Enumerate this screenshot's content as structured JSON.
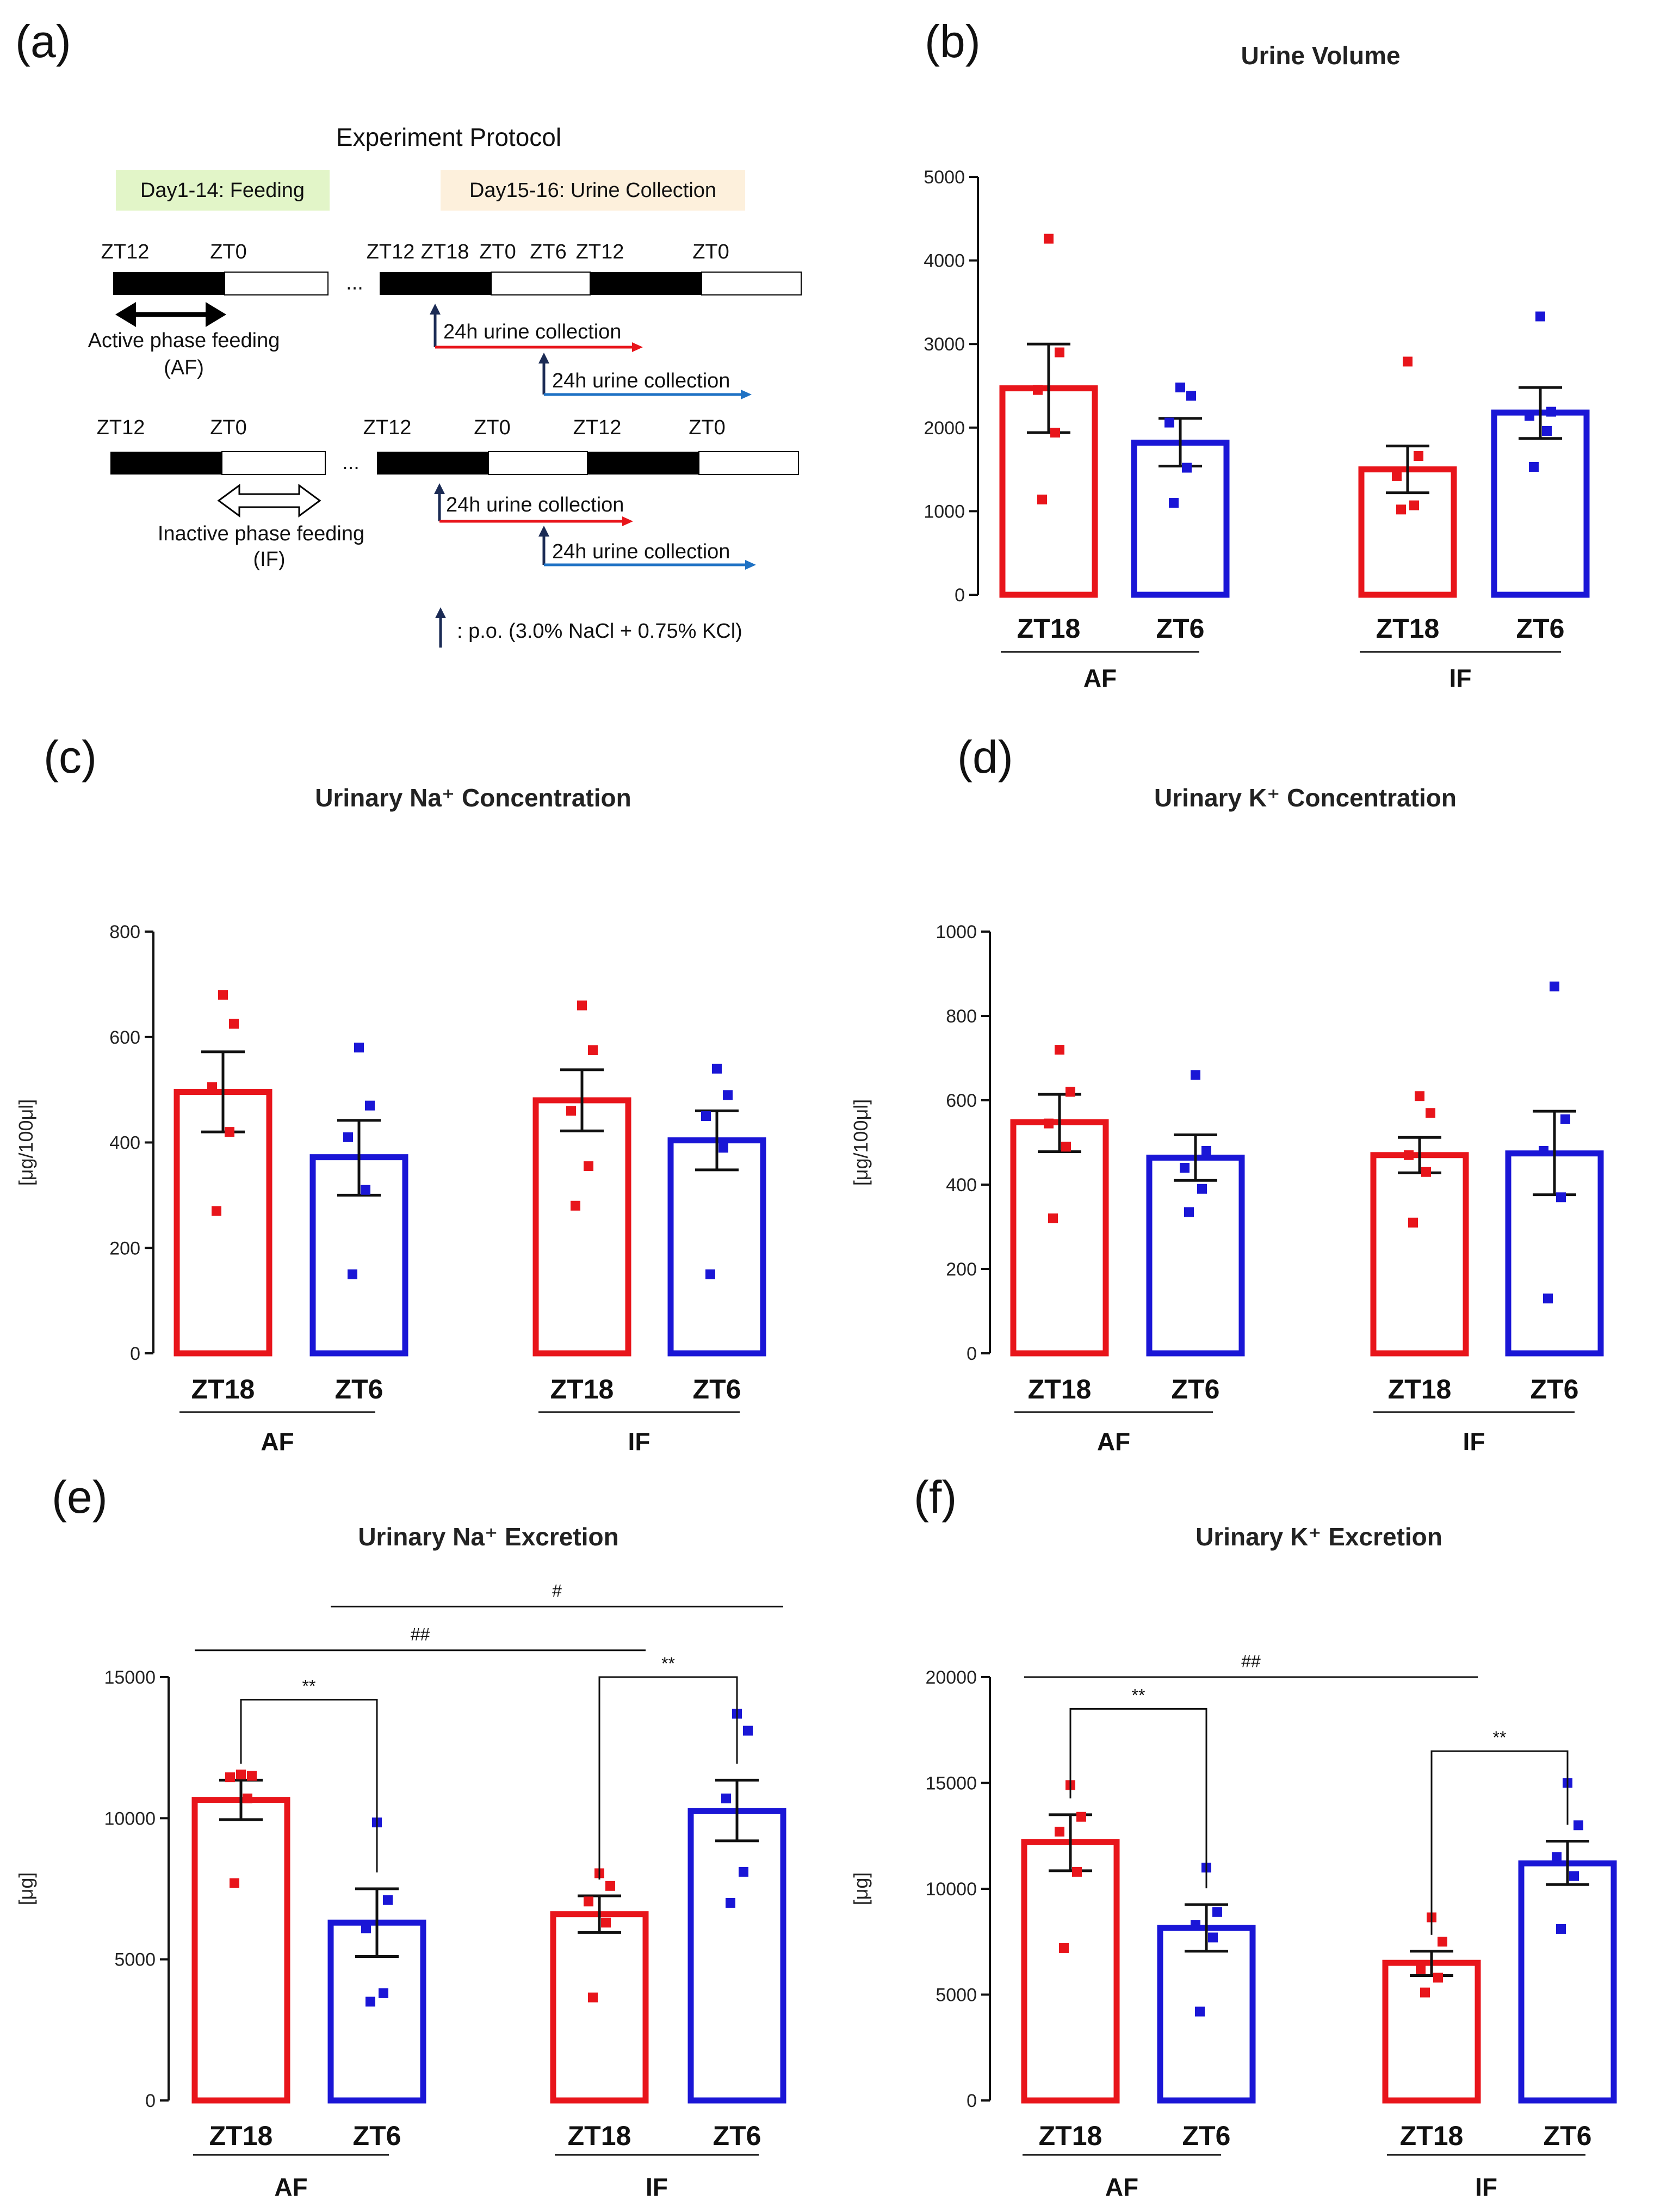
{
  "panel_labels": [
    "(a)",
    "(b)",
    "(c)",
    "(d)",
    "(e)",
    "(f)"
  ],
  "colors": {
    "red": "#e8151b",
    "blue": "#1a16d6",
    "black": "#111111",
    "arrow_red": "#e8151b",
    "arrow_blue": "#1f72c4",
    "arrow_navy": "#1b2b55",
    "feeding_box": "#e2f5c8",
    "collection_box": "#fdf0dc"
  },
  "protocol": {
    "title": "Experiment Protocol",
    "feeding_label": "Day1-14: Feeding",
    "collection_label": "Day15-16: Urine Collection",
    "af": {
      "feed_ticks": [
        "ZT12",
        "ZT0"
      ],
      "collect_ticks": [
        "ZT12",
        "ZT18",
        "ZT0",
        "ZT6",
        "ZT12",
        "ZT0"
      ],
      "label_line1": "Active phase feeding",
      "label_line2": "(AF)"
    },
    "if": {
      "feed_ticks": [
        "ZT12",
        "ZT0"
      ],
      "collect_ticks": [
        "ZT12",
        "ZT0",
        "ZT12",
        "ZT0"
      ],
      "label_line1": "Inactive phase feeding",
      "label_line2": "(IF)"
    },
    "ellipsis": "...",
    "collection_text": "24h  urine collection",
    "legend_text": ": p.o. (3.0% NaCl + 0.75% KCl)"
  },
  "chart_data": [
    {
      "id": "b",
      "type": "bar",
      "title": "Urine Volume",
      "ylabel": "",
      "categories": [
        "ZT18",
        "ZT6",
        "ZT18",
        "ZT6"
      ],
      "groups": [
        "AF",
        "IF"
      ],
      "ylim": [
        0,
        5000
      ],
      "yticks": [
        "0",
        "1000",
        "2000",
        "3000",
        "4000",
        "5000"
      ],
      "ytick_values": [
        0,
        1000,
        2000,
        3000,
        4000,
        5000
      ],
      "series": [
        {
          "name": "AF ZT18",
          "color": "red",
          "mean": 2470,
          "sem": [
            1940,
            3000
          ],
          "points": [
            4260,
            2900,
            2450,
            1940,
            1140
          ]
        },
        {
          "name": "AF ZT6",
          "color": "blue",
          "mean": 1820,
          "sem": [
            1540,
            2110
          ],
          "points": [
            2480,
            2380,
            2060,
            1520,
            1100
          ]
        },
        {
          "name": "IF ZT18",
          "color": "red",
          "mean": 1500,
          "sem": [
            1220,
            1780
          ],
          "points": [
            2790,
            1660,
            1420,
            1070,
            1020
          ]
        },
        {
          "name": "IF ZT6",
          "color": "blue",
          "mean": 2180,
          "sem": [
            1870,
            2480
          ],
          "points": [
            3330,
            2190,
            2140,
            1960,
            1530
          ]
        }
      ],
      "significance": []
    },
    {
      "id": "c",
      "type": "bar",
      "title": "Urinary Na⁺ Concentration",
      "ylabel": "[μg/100μl]",
      "categories": [
        "ZT18",
        "ZT6",
        "ZT18",
        "ZT6"
      ],
      "groups": [
        "AF",
        "IF"
      ],
      "ylim": [
        0,
        800
      ],
      "yticks": [
        "0",
        "200",
        "400",
        "600",
        "800"
      ],
      "ytick_values": [
        0,
        200,
        400,
        600,
        800
      ],
      "series": [
        {
          "name": "AF ZT18",
          "color": "red",
          "mean": 496,
          "sem": [
            420,
            572
          ],
          "points": [
            680,
            625,
            505,
            420,
            270
          ]
        },
        {
          "name": "AF ZT6",
          "color": "blue",
          "mean": 372,
          "sem": [
            300,
            442
          ],
          "points": [
            580,
            470,
            410,
            310,
            150
          ]
        },
        {
          "name": "IF ZT18",
          "color": "red",
          "mean": 480,
          "sem": [
            422,
            538
          ],
          "points": [
            660,
            575,
            460,
            355,
            280
          ]
        },
        {
          "name": "IF ZT6",
          "color": "blue",
          "mean": 404,
          "sem": [
            348,
            460
          ],
          "points": [
            540,
            490,
            450,
            390,
            150
          ]
        }
      ],
      "significance": []
    },
    {
      "id": "d",
      "type": "bar",
      "title": "Urinary K⁺ Concentration",
      "ylabel": "[μg/100μl]",
      "categories": [
        "ZT18",
        "ZT6",
        "ZT18",
        "ZT6"
      ],
      "groups": [
        "AF",
        "IF"
      ],
      "ylim": [
        0,
        1000
      ],
      "yticks": [
        "0",
        "200",
        "400",
        "600",
        "800",
        "1000"
      ],
      "ytick_values": [
        0,
        200,
        400,
        600,
        800,
        1000
      ],
      "series": [
        {
          "name": "AF ZT18",
          "color": "red",
          "mean": 548,
          "sem": [
            478,
            614
          ],
          "points": [
            720,
            620,
            545,
            490,
            320
          ]
        },
        {
          "name": "AF ZT6",
          "color": "blue",
          "mean": 464,
          "sem": [
            410,
            518
          ],
          "points": [
            660,
            480,
            440,
            390,
            335
          ]
        },
        {
          "name": "IF ZT18",
          "color": "red",
          "mean": 470,
          "sem": [
            428,
            512
          ],
          "points": [
            610,
            570,
            470,
            430,
            310
          ]
        },
        {
          "name": "IF ZT6",
          "color": "blue",
          "mean": 474,
          "sem": [
            376,
            574
          ],
          "points": [
            870,
            555,
            480,
            370,
            130
          ]
        }
      ],
      "significance": []
    },
    {
      "id": "e",
      "type": "bar",
      "title": "Urinary Na⁺ Excretion",
      "ylabel": "[μg]",
      "categories": [
        "ZT18",
        "ZT6",
        "ZT18",
        "ZT6"
      ],
      "groups": [
        "AF",
        "IF"
      ],
      "ylim": [
        0,
        15000
      ],
      "yticks": [
        "0",
        "5000",
        "10000",
        "15000"
      ],
      "ytick_values": [
        0,
        5000,
        10000,
        15000
      ],
      "series": [
        {
          "name": "AF ZT18",
          "color": "red",
          "mean": 10650,
          "sem": [
            9950,
            11350
          ],
          "points": [
            11550,
            11500,
            11450,
            10700,
            7700
          ]
        },
        {
          "name": "AF ZT6",
          "color": "blue",
          "mean": 6300,
          "sem": [
            5100,
            7500
          ],
          "points": [
            9850,
            7100,
            6100,
            3800,
            3500
          ]
        },
        {
          "name": "IF ZT18",
          "color": "red",
          "mean": 6600,
          "sem": [
            5950,
            7250
          ],
          "points": [
            8050,
            7600,
            7050,
            6300,
            3650
          ]
        },
        {
          "name": "IF ZT6",
          "color": "blue",
          "mean": 10250,
          "sem": [
            9200,
            11350
          ],
          "points": [
            13700,
            13100,
            10700,
            8100,
            7000
          ]
        }
      ],
      "significance": [
        {
          "from": 0,
          "to": 1,
          "label": "**",
          "style": "bracket",
          "y": 14200
        },
        {
          "from": 2,
          "to": 3,
          "label": "**",
          "style": "bracket",
          "y": 15000
        },
        {
          "from": 0,
          "to": 2,
          "label": "##",
          "style": "line",
          "y": 15950
        },
        {
          "from": 1,
          "to": 3,
          "label": "#",
          "style": "line",
          "y": 17500
        }
      ]
    },
    {
      "id": "f",
      "type": "bar",
      "title": "Urinary K⁺ Excretion",
      "ylabel": "[μg]",
      "categories": [
        "ZT18",
        "ZT6",
        "ZT18",
        "ZT6"
      ],
      "groups": [
        "AF",
        "IF"
      ],
      "ylim": [
        0,
        20000
      ],
      "yticks": [
        "0",
        "5000",
        "10000",
        "15000",
        "20000"
      ],
      "ytick_values": [
        0,
        5000,
        10000,
        15000,
        20000
      ],
      "series": [
        {
          "name": "AF ZT18",
          "color": "red",
          "mean": 12200,
          "sem": [
            10850,
            13500
          ],
          "points": [
            14900,
            13400,
            12700,
            10800,
            7200
          ]
        },
        {
          "name": "AF ZT6",
          "color": "blue",
          "mean": 8150,
          "sem": [
            7050,
            9250
          ],
          "points": [
            11000,
            8900,
            8300,
            7700,
            4200
          ]
        },
        {
          "name": "IF ZT18",
          "color": "red",
          "mean": 6500,
          "sem": [
            5900,
            7050
          ],
          "points": [
            8650,
            7500,
            6200,
            5800,
            5100
          ]
        },
        {
          "name": "IF ZT6",
          "color": "blue",
          "mean": 11200,
          "sem": [
            10200,
            12250
          ],
          "points": [
            15000,
            13000,
            11500,
            10600,
            8100
          ]
        }
      ],
      "significance": [
        {
          "from": 0,
          "to": 1,
          "label": "**",
          "style": "bracket",
          "y": 18500
        },
        {
          "from": 2,
          "to": 3,
          "label": "**",
          "style": "bracket",
          "y": 16500
        },
        {
          "from": 0,
          "to": 2,
          "label": "##",
          "style": "line",
          "y": 20000
        }
      ]
    }
  ]
}
